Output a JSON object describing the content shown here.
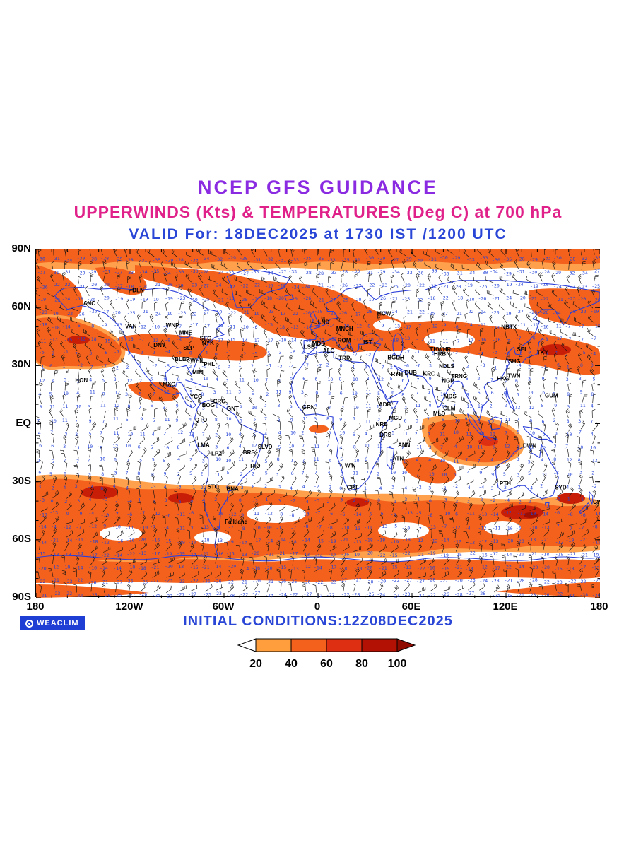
{
  "header": {
    "title": "NCEP GFS GUIDANCE",
    "subtitle": "UPPERWINDS (Kts) & TEMPERATURES (Deg C) at 700 hPa",
    "valid_line": "VALID For: 18DEC2025 at 1730 IST /1200 UTC"
  },
  "footer": {
    "logo_text": "WEACLIM",
    "initial_conditions": "INITIAL CONDITIONS:12Z08DEC2025"
  },
  "colors": {
    "title": "#8A2BE2",
    "subtitle": "#E0218A",
    "valid_line": "#2A46D6",
    "coastline": "#2B3FD9",
    "temperature_values": "#2343D7",
    "shade_light": "#FFA04D",
    "shade_main": "#F4611C",
    "shade_dark": "#C81E07",
    "shade_darkest": "#9E0E02",
    "badge_background": "#1F3FD4"
  },
  "chart_data": {
    "type": "heatmap",
    "variant": "global-wind-barb-and-temperature-map",
    "level": "700 hPa",
    "wind_units": "Kts",
    "temp_units": "Deg C",
    "valid_time": "18DEC2025 at 1730 IST /1200 UTC",
    "initial_time": "12Z08DEC2025",
    "lon_range": [
      -180,
      180
    ],
    "lat_range": [
      -90,
      90
    ],
    "grid_on": false,
    "x_ticks": [
      "180",
      "120W",
      "60W",
      "0",
      "60E",
      "120E",
      "180"
    ],
    "y_ticks": [
      "90N",
      "60N",
      "30N",
      "EQ",
      "30S",
      "60S",
      "90S"
    ],
    "legend": {
      "position": "bottom-center",
      "tick_labels": [
        "20",
        "40",
        "60",
        "80",
        "100"
      ],
      "box_colors": [
        "#FF9E3D",
        "#F4611C",
        "#DF2F12",
        "#B41105"
      ],
      "arrow_left_color": "#FFFFFF",
      "arrow_right_color": "#8F0B00"
    },
    "temp_bands": [
      {
        "lat_min": 75,
        "lat_max": 91,
        "base": -31,
        "spread": 4
      },
      {
        "lat_min": 58,
        "lat_max": 75,
        "base": -22,
        "spread": 5
      },
      {
        "lat_min": 40,
        "lat_max": 58,
        "base": -12,
        "spread": 6
      },
      {
        "lat_min": 27,
        "lat_max": 40,
        "base": -2,
        "spread": 5
      },
      {
        "lat_min": -25,
        "lat_max": 27,
        "base": 7,
        "spread": 5
      },
      {
        "lat_min": -40,
        "lat_max": -25,
        "base": 0,
        "spread": 4
      },
      {
        "lat_min": -58,
        "lat_max": -40,
        "base": -9,
        "spread": 5
      },
      {
        "lat_min": -75,
        "lat_max": -58,
        "base": -17,
        "spread": 5
      },
      {
        "lat_min": -91,
        "lat_max": -75,
        "base": -24,
        "spread": 4
      }
    ],
    "stations": [
      {
        "id": "ANC",
        "lon": -149.9,
        "lat": 61.2
      },
      {
        "id": "DLN",
        "lon": -118.5,
        "lat": 68.0
      },
      {
        "id": "VAN",
        "lon": -123.1,
        "lat": 49.3
      },
      {
        "id": "WNP",
        "lon": -97.1,
        "lat": 49.9
      },
      {
        "id": "MNE",
        "lon": -88.5,
        "lat": 46.0
      },
      {
        "id": "SEG",
        "lon": -75.5,
        "lat": 43.0
      },
      {
        "id": "NYK",
        "lon": -74.0,
        "lat": 40.7
      },
      {
        "id": "DNV",
        "lon": -105.0,
        "lat": 39.7
      },
      {
        "id": "SLP",
        "lon": -86.0,
        "lat": 38.2
      },
      {
        "id": "BLER",
        "lon": -91.5,
        "lat": 32.3
      },
      {
        "id": "WHIL",
        "lon": -81.5,
        "lat": 31.6
      },
      {
        "id": "PHL",
        "lon": -73.0,
        "lat": 29.8
      },
      {
        "id": "MIM",
        "lon": -80.2,
        "lat": 25.8
      },
      {
        "id": "MXC",
        "lon": -99.1,
        "lat": 19.4
      },
      {
        "id": "HON",
        "lon": -155.0,
        "lat": 21.3
      },
      {
        "id": "YCG",
        "lon": -81.7,
        "lat": 13.0
      },
      {
        "id": "BOG",
        "lon": -74.1,
        "lat": 8.6
      },
      {
        "id": "CRC",
        "lon": -66.9,
        "lat": 10.5
      },
      {
        "id": "GNT",
        "lon": -58.2,
        "lat": 6.8
      },
      {
        "id": "QTO",
        "lon": -78.5,
        "lat": 1.0
      },
      {
        "id": "LMA",
        "lon": -77.0,
        "lat": -12.0
      },
      {
        "id": "LPZ",
        "lon": -68.1,
        "lat": -16.5
      },
      {
        "id": "BRS",
        "lon": -47.9,
        "lat": -15.8
      },
      {
        "id": "SLVD",
        "lon": -38.5,
        "lat": -13.0
      },
      {
        "id": "RIO",
        "lon": -43.2,
        "lat": -22.9
      },
      {
        "id": "STO",
        "lon": -70.6,
        "lat": -33.5
      },
      {
        "id": "BNA",
        "lon": -58.4,
        "lat": -34.6
      },
      {
        "id": "Falkland",
        "lon": -59.5,
        "lat": -51.7
      },
      {
        "id": "GRN",
        "lon": -10.0,
        "lat": 7.5
      },
      {
        "id": "LND",
        "lon": -0.1,
        "lat": 51.5
      },
      {
        "id": "MNCH",
        "lon": 11.6,
        "lat": 48.1
      },
      {
        "id": "MDD",
        "lon": -3.7,
        "lat": 40.4
      },
      {
        "id": "ALG",
        "lon": 3.1,
        "lat": 36.7
      },
      {
        "id": "LSB",
        "lon": -9.1,
        "lat": 38.7
      },
      {
        "id": "TRP",
        "lon": 13.2,
        "lat": 32.9
      },
      {
        "id": "ROM",
        "lon": 12.5,
        "lat": 41.9
      },
      {
        "id": "IST",
        "lon": 28.9,
        "lat": 41.0
      },
      {
        "id": "MCW",
        "lon": 37.6,
        "lat": 55.8
      },
      {
        "id": "BGDH",
        "lon": 44.4,
        "lat": 33.3
      },
      {
        "id": "RYH",
        "lon": 46.7,
        "lat": 24.6
      },
      {
        "id": "DUB",
        "lon": 55.3,
        "lat": 25.3
      },
      {
        "id": "KRC",
        "lon": 67.0,
        "lat": 24.9
      },
      {
        "id": "ADB",
        "lon": 38.8,
        "lat": 9.0
      },
      {
        "id": "MGD",
        "lon": 45.3,
        "lat": 2.0
      },
      {
        "id": "NRB",
        "lon": 36.8,
        "lat": -1.3
      },
      {
        "id": "DRS",
        "lon": 39.3,
        "lat": -6.8
      },
      {
        "id": "ANN",
        "lon": 51.0,
        "lat": -12.0
      },
      {
        "id": "ATN",
        "lon": 47.5,
        "lat": -18.9
      },
      {
        "id": "WIN",
        "lon": 17.1,
        "lat": -22.6
      },
      {
        "id": "CPT",
        "lon": 18.4,
        "lat": -33.9
      },
      {
        "id": "THWHR",
        "lon": 71.5,
        "lat": 37.5
      },
      {
        "id": "HRBN",
        "lon": 74.0,
        "lat": 35.0
      },
      {
        "id": "NDLS",
        "lon": 77.2,
        "lat": 28.6
      },
      {
        "id": "TRNG",
        "lon": 85.0,
        "lat": 23.5
      },
      {
        "id": "NGP",
        "lon": 79.1,
        "lat": 21.1
      },
      {
        "id": "MDS",
        "lon": 80.3,
        "lat": 13.1
      },
      {
        "id": "CLM",
        "lon": 79.9,
        "lat": 6.9
      },
      {
        "id": "MLD",
        "lon": 73.5,
        "lat": 4.2
      },
      {
        "id": "HKG",
        "lon": 114.2,
        "lat": 22.3
      },
      {
        "id": "TWN",
        "lon": 121.0,
        "lat": 23.8
      },
      {
        "id": "SHG",
        "lon": 121.5,
        "lat": 31.2
      },
      {
        "id": "TKY",
        "lon": 139.7,
        "lat": 35.7
      },
      {
        "id": "SEL",
        "lon": 127.0,
        "lat": 37.5
      },
      {
        "id": "NBTX",
        "lon": 117.0,
        "lat": 49.0
      },
      {
        "id": "GUM",
        "lon": 144.8,
        "lat": 13.5
      },
      {
        "id": "DWN",
        "lon": 130.8,
        "lat": -12.4
      },
      {
        "id": "PTH",
        "lon": 115.9,
        "lat": -31.9
      },
      {
        "id": "SYD",
        "lon": 151.2,
        "lat": -33.9
      },
      {
        "id": "CWIT",
        "lon": 175.5,
        "lat": -41.5
      }
    ]
  }
}
